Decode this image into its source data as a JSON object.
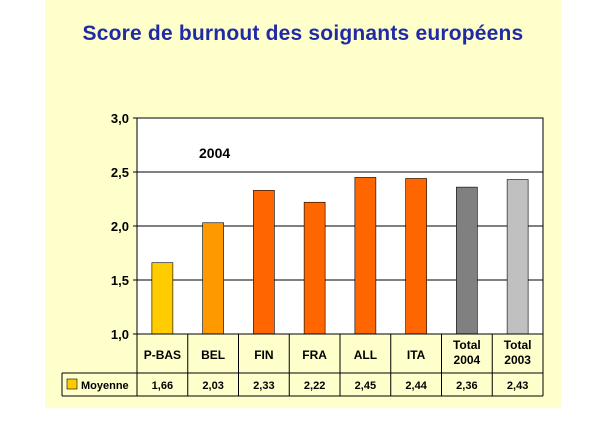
{
  "chart_data": {
    "type": "bar",
    "title": "Score de burnout des soignants européens",
    "annotation": "2004",
    "ylim": [
      1.0,
      3.0
    ],
    "yticks": [
      "1,0",
      "1,5",
      "2,0",
      "2,5",
      "3,0"
    ],
    "ytick_values": [
      1.0,
      1.5,
      2.0,
      2.5,
      3.0
    ],
    "grid": true,
    "categories": [
      [
        "P-BAS"
      ],
      [
        "BEL"
      ],
      [
        "FIN"
      ],
      [
        "FRA"
      ],
      [
        "ALL"
      ],
      [
        "ITA"
      ],
      [
        "Total",
        "2004"
      ],
      [
        "Total",
        "2003"
      ]
    ],
    "series": [
      {
        "name": "Moyenne",
        "values": [
          1.66,
          2.03,
          2.33,
          2.22,
          2.45,
          2.44,
          2.36,
          2.43
        ],
        "value_labels": [
          "1,66",
          "2,03",
          "2,33",
          "2,22",
          "2,45",
          "2,44",
          "2,36",
          "2,43"
        ]
      }
    ],
    "colors": [
      "#ffcc00",
      "#ff9900",
      "#ff6600",
      "#ff6600",
      "#ff6600",
      "#ff6600",
      "#808080",
      "#c0c0c0"
    ],
    "legend_swatch_color": "#ffcc00",
    "legend_placement": "data-table"
  }
}
